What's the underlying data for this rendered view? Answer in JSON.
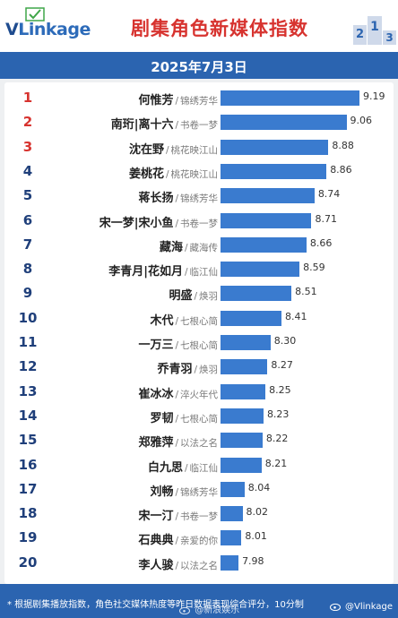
{
  "header": {
    "logo_text": {
      "v": "V",
      "link": "Link",
      "age": "age"
    },
    "title": "剧集角色新媒体指数",
    "podium_numbers": [
      "2",
      "1",
      "3"
    ]
  },
  "date_label": "2025年7月3日",
  "chart_data": {
    "type": "bar",
    "orientation": "horizontal",
    "title": "剧集角色新媒体指数",
    "subtitle": "2025年7月3日",
    "categories": [
      "何惟芳｜锦绣芳华",
      "南珩|离十六｜书卷一梦",
      "沈在野｜桃花映江山",
      "姜桃花｜桃花映江山",
      "蒋长扬｜锦绣芳华",
      "宋一梦|宋小鱼｜书卷一梦",
      "藏海｜藏海传",
      "李青月|花如月｜临江仙",
      "明盛｜焕羽",
      "木代｜七根心简",
      "一万三｜七根心简",
      "乔青羽｜焕羽",
      "崔冰冰｜淬火年代",
      "罗韧｜七根心简",
      "郑雅萍｜以法之名",
      "白九思｜临江仙",
      "刘畅｜锦绣芳华",
      "宋一汀｜书卷一梦",
      "石典典｜亲爱的你",
      "李人骏｜以法之名"
    ],
    "values": [
      9.19,
      9.06,
      8.88,
      8.86,
      8.74,
      8.71,
      8.66,
      8.59,
      8.51,
      8.41,
      8.3,
      8.27,
      8.25,
      8.23,
      8.22,
      8.21,
      8.04,
      8.02,
      8.01,
      7.98
    ],
    "xlim": [
      7.8,
      9.19
    ],
    "grid": false,
    "legend": "none"
  },
  "rows": [
    {
      "rank": "1",
      "name": "何惟芳",
      "drama": "锦绣芳华",
      "score": "9.19"
    },
    {
      "rank": "2",
      "name": "南珩|离十六",
      "drama": "书卷一梦",
      "score": "9.06"
    },
    {
      "rank": "3",
      "name": "沈在野",
      "drama": "桃花映江山",
      "score": "8.88"
    },
    {
      "rank": "4",
      "name": "姜桃花",
      "drama": "桃花映江山",
      "score": "8.86"
    },
    {
      "rank": "5",
      "name": "蒋长扬",
      "drama": "锦绣芳华",
      "score": "8.74"
    },
    {
      "rank": "6",
      "name": "宋一梦|宋小鱼",
      "drama": "书卷一梦",
      "score": "8.71"
    },
    {
      "rank": "7",
      "name": "藏海",
      "drama": "藏海传",
      "score": "8.66"
    },
    {
      "rank": "8",
      "name": "李青月|花如月",
      "drama": "临江仙",
      "score": "8.59"
    },
    {
      "rank": "9",
      "name": "明盛",
      "drama": "焕羽",
      "score": "8.51"
    },
    {
      "rank": "10",
      "name": "木代",
      "drama": "七根心简",
      "score": "8.41"
    },
    {
      "rank": "11",
      "name": "一万三",
      "drama": "七根心简",
      "score": "8.30"
    },
    {
      "rank": "12",
      "name": "乔青羽",
      "drama": "焕羽",
      "score": "8.27"
    },
    {
      "rank": "13",
      "name": "崔冰冰",
      "drama": "淬火年代",
      "score": "8.25"
    },
    {
      "rank": "14",
      "name": "罗韧",
      "drama": "七根心简",
      "score": "8.23"
    },
    {
      "rank": "15",
      "name": "郑雅萍",
      "drama": "以法之名",
      "score": "8.22"
    },
    {
      "rank": "16",
      "name": "白九思",
      "drama": "临江仙",
      "score": "8.21"
    },
    {
      "rank": "17",
      "name": "刘畅",
      "drama": "锦绣芳华",
      "score": "8.04"
    },
    {
      "rank": "18",
      "name": "宋一汀",
      "drama": "书卷一梦",
      "score": "8.02"
    },
    {
      "rank": "19",
      "name": "石典典",
      "drama": "亲爱的你",
      "score": "8.01"
    },
    {
      "rank": "20",
      "name": "李人骏",
      "drama": "以法之名",
      "score": "7.98"
    }
  ],
  "separator": "/",
  "footnote": "* 根据剧集播放指数，角色社交媒体热度等昨日数据表现综合评分，10分制",
  "watermark": "@新浪娱乐",
  "credit": "@Vlinkage",
  "colors": {
    "bar": "#3a7bcf",
    "band": "#2b64b0",
    "title": "#d7332f",
    "rank_top": "#d7332f",
    "rank": "#1f3f7a"
  }
}
